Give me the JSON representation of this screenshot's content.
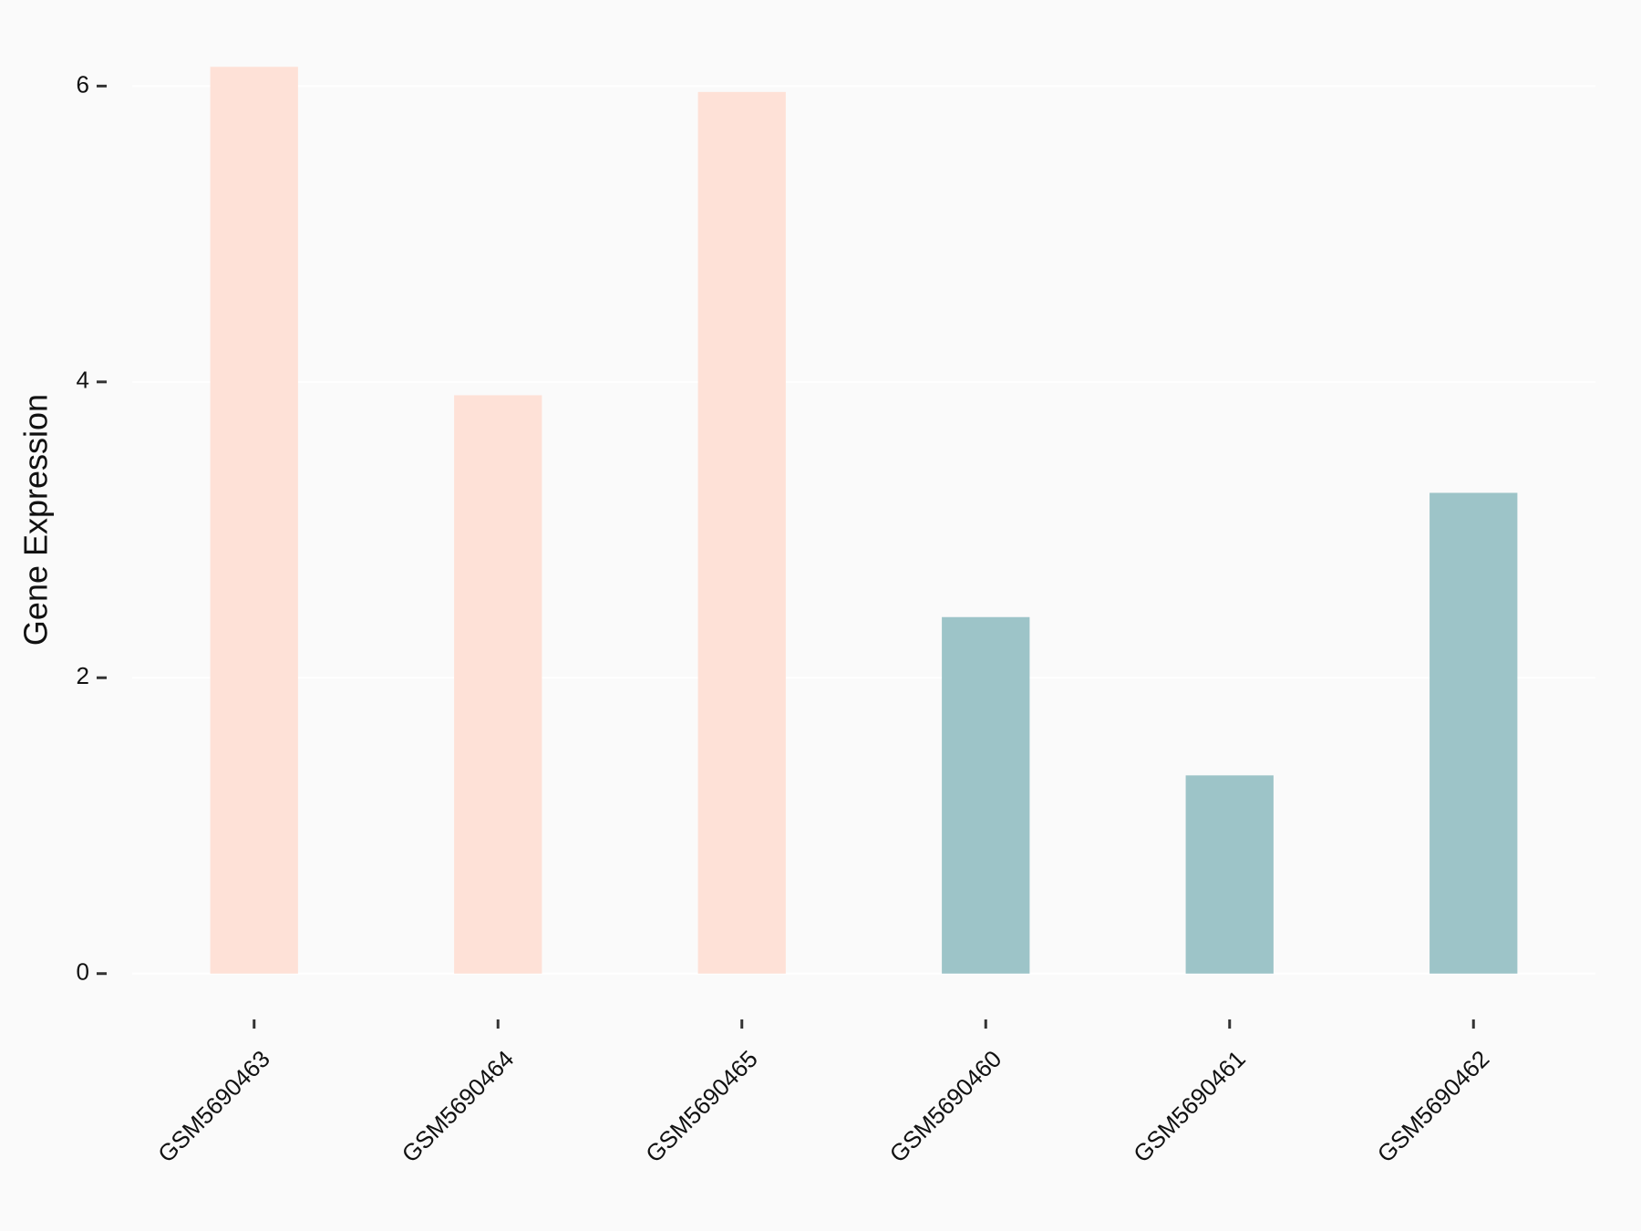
{
  "chart_data": {
    "type": "bar",
    "y_label": "Gene Expression",
    "categories": [
      "GSM5690463",
      "GSM5690464",
      "GSM5690465",
      "GSM5690460",
      "GSM5690461",
      "GSM5690462"
    ],
    "values": [
      6.13,
      3.91,
      5.96,
      2.41,
      1.34,
      3.25
    ],
    "colors": [
      "#fee1d7",
      "#fee1d7",
      "#fee1d7",
      "#9dc4c8",
      "#9dc4c8",
      "#9dc4c8"
    ],
    "ylim": [
      -0.31,
      6.44
    ],
    "yticks": [
      0,
      2,
      4,
      6
    ],
    "grid": true
  }
}
